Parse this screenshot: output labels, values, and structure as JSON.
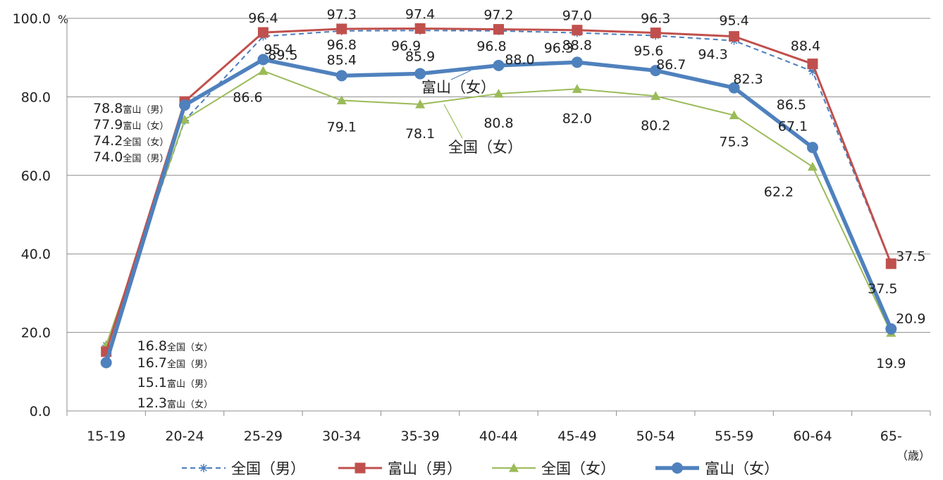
{
  "chart_data": {
    "type": "line",
    "categories": [
      "15-19",
      "20-24",
      "25-29",
      "30-34",
      "35-39",
      "40-44",
      "45-49",
      "50-54",
      "55-59",
      "60-64",
      "65-"
    ],
    "ylim": [
      0,
      100
    ],
    "yticks": [
      "0.0",
      "20.0",
      "40.0",
      "60.0",
      "80.0",
      "100.0"
    ],
    "y_unit": "%",
    "x_unit": "（歳）",
    "grid": true,
    "legend_position": "bottom",
    "series": [
      {
        "name": "全国（男）",
        "color": "#4a7ebb",
        "marker": "asterisk",
        "dash": true,
        "values": [
          16.7,
          74.0,
          95.4,
          96.8,
          96.9,
          96.8,
          96.3,
          95.6,
          94.3,
          86.5,
          37.5
        ]
      },
      {
        "name": "富山（男）",
        "color": "#c0504d",
        "marker": "square",
        "dash": false,
        "values": [
          15.1,
          78.8,
          96.4,
          97.3,
          97.4,
          97.2,
          97.0,
          96.3,
          95.4,
          88.4,
          37.5
        ]
      },
      {
        "name": "全国（女）",
        "color": "#9bbb59",
        "marker": "triangle",
        "dash": false,
        "values": [
          16.8,
          74.2,
          86.6,
          79.1,
          78.1,
          80.8,
          82.0,
          80.2,
          75.3,
          62.2,
          19.9
        ]
      },
      {
        "name": "富山（女）",
        "color": "#4f81bd",
        "marker": "circle",
        "dash": false,
        "values": [
          12.3,
          77.9,
          89.5,
          85.4,
          85.9,
          88.0,
          88.8,
          86.7,
          82.3,
          67.1,
          20.9
        ]
      }
    ],
    "first_point_labels": [
      {
        "value": "16.8",
        "tag": "全国（女）"
      },
      {
        "value": "16.7",
        "tag": "全国（男）"
      },
      {
        "value": "15.1",
        "tag": "富山（男）"
      },
      {
        "value": "12.3",
        "tag": "富山（女）"
      }
    ],
    "second_point_labels": [
      {
        "value": "78.8",
        "tag": "富山（男）"
      },
      {
        "value": "77.9",
        "tag": "富山（女）"
      },
      {
        "value": "74.2",
        "tag": "全国（女）"
      },
      {
        "value": "74.0",
        "tag": "全国（男）"
      }
    ],
    "callouts": [
      "富山（女）",
      "全国（女）"
    ]
  }
}
